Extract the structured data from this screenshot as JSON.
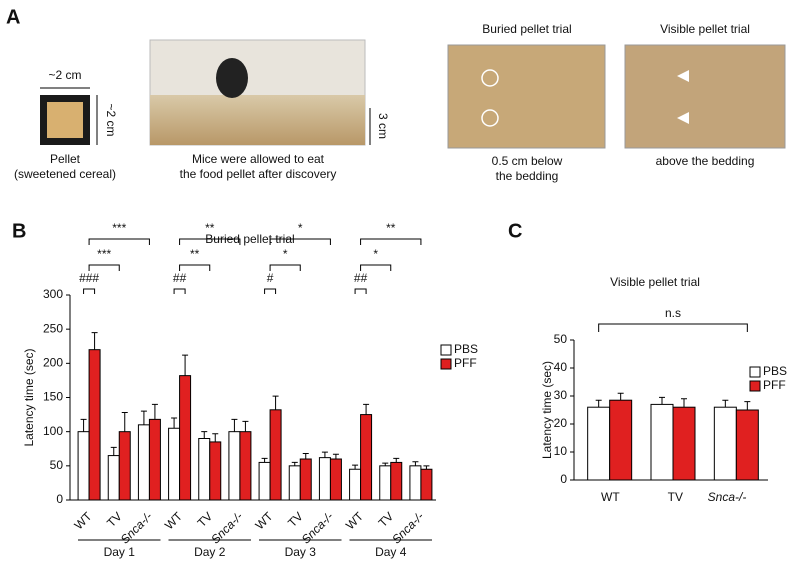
{
  "panel_a": {
    "label": "A",
    "pellet_width": "~2 cm",
    "pellet_height": "~2 cm",
    "pellet_caption": [
      "Pellet",
      "(sweetened cereal)"
    ],
    "mouse_caption": [
      "Mice were allowed to eat",
      "the food pellet after discovery"
    ],
    "bedding_depth": "3 cm",
    "buried_title": "Buried pellet trial",
    "buried_caption": [
      "0.5 cm below",
      "the bedding"
    ],
    "visible_title": "Visible pellet trial",
    "visible_caption": [
      "above the bedding"
    ]
  },
  "chart_data": [
    {
      "type": "bar",
      "label": "B",
      "title": "Buried pellet trial",
      "y_label": "Latency time (sec)",
      "categories": [
        "WT",
        "TV",
        "Snca-/-",
        "WT",
        "TV",
        "Snca-/-",
        "WT",
        "TV",
        "Snca-/-",
        "WT",
        "TV",
        "Snca-/-"
      ],
      "groups": [
        "Day 1",
        "Day 2",
        "Day 3",
        "Day 4"
      ],
      "series": [
        {
          "name": "PBS",
          "color": "#ffffff",
          "values": [
            100,
            65,
            110,
            105,
            90,
            100,
            55,
            50,
            62,
            45,
            50,
            50
          ],
          "errors": [
            18,
            12,
            20,
            15,
            10,
            18,
            6,
            5,
            8,
            6,
            4,
            6
          ]
        },
        {
          "name": "PFF",
          "color": "#e02020",
          "values": [
            220,
            100,
            118,
            182,
            85,
            100,
            132,
            60,
            60,
            125,
            55,
            45
          ],
          "errors": [
            25,
            28,
            22,
            30,
            12,
            15,
            20,
            8,
            7,
            15,
            6,
            5
          ]
        }
      ],
      "significance": [
        [
          "###",
          "***",
          "***"
        ],
        [
          "##",
          "**",
          "**"
        ],
        [
          "#",
          "*",
          "*"
        ],
        [
          "##",
          "*",
          "**"
        ]
      ],
      "ylim": [
        0,
        300
      ],
      "yticks": [
        0,
        50,
        100,
        150,
        200,
        250,
        300
      ],
      "legend": "right"
    },
    {
      "type": "bar",
      "label": "C",
      "title": "Visible pellet trial",
      "y_label": "Latency time (sec)",
      "categories": [
        "WT",
        "TV",
        "Snca-/-"
      ],
      "series": [
        {
          "name": "PBS",
          "color": "#ffffff",
          "values": [
            26,
            27,
            26
          ],
          "errors": [
            2.5,
            2.5,
            2.5
          ]
        },
        {
          "name": "PFF",
          "color": "#e02020",
          "values": [
            28.5,
            26,
            25
          ],
          "errors": [
            2.5,
            3,
            3
          ]
        }
      ],
      "annotation": "n.s",
      "ylim": [
        0,
        50
      ],
      "yticks": [
        0,
        10,
        20,
        30,
        40,
        50
      ],
      "legend": "right"
    }
  ]
}
